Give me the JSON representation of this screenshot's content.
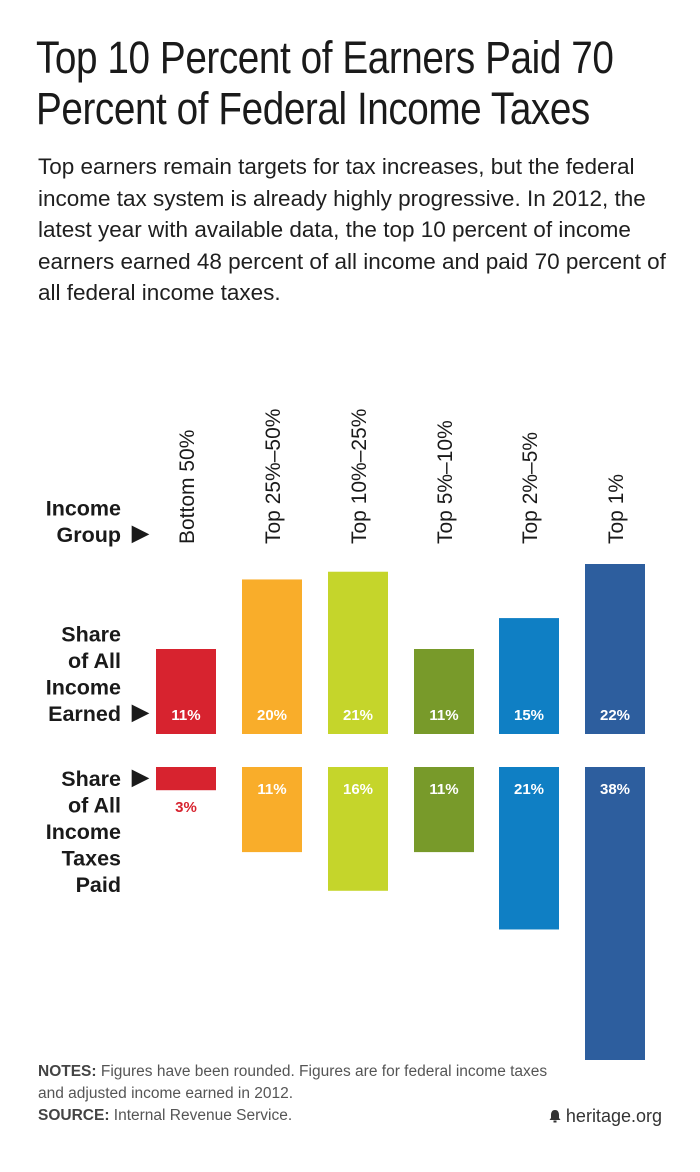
{
  "header": {
    "title": "Top 10 Percent of Earners Paid 70 Percent of Federal Income Taxes",
    "title_line1": "Top 10 Percent of Earners Paid 70",
    "title_line2": "Percent of Federal Income Taxes",
    "subtitle": "Top earners remain targets for tax increases, but the federal income tax system is already highly progressive. In 2012, the latest year with available data, the top 10 percent of income earners earned 48 percent of all income and paid 70 percent of all federal income taxes."
  },
  "row_labels": {
    "group": [
      "Income",
      "Group"
    ],
    "earned": [
      "Share",
      "of All",
      "Income",
      "Earned"
    ],
    "paid": [
      "Share",
      "of All",
      "Income",
      "Taxes",
      "Paid"
    ],
    "arrow": "▶"
  },
  "chart_data": {
    "type": "bar",
    "categories": [
      "Bottom 50%",
      "Top 25%–50%",
      "Top 10%–25%",
      "Top 5%–10%",
      "Top 2%–5%",
      "Top 1%"
    ],
    "colors": [
      "#d7232f",
      "#f9ad2a",
      "#c5d52b",
      "#789a2a",
      "#0f7fc4",
      "#2d5e9e"
    ],
    "series": [
      {
        "name": "Share of All Income Earned",
        "values": [
          11,
          20,
          21,
          11,
          15,
          22
        ],
        "labels": [
          "11%",
          "20%",
          "21%",
          "11%",
          "15%",
          "22%"
        ]
      },
      {
        "name": "Share of All Income Taxes Paid",
        "values": [
          3,
          11,
          16,
          11,
          21,
          38
        ],
        "labels": [
          "3%",
          "11%",
          "16%",
          "11%",
          "21%",
          "38%"
        ]
      }
    ]
  },
  "footer": {
    "notes_label": "NOTES:",
    "notes_text": " Figures have been rounded. Figures are for federal income taxes and adjusted income earned in 2012.",
    "source_label": "SOURCE:",
    "source_text": " Internal Revenue Service.",
    "brand": "heritage.org"
  }
}
